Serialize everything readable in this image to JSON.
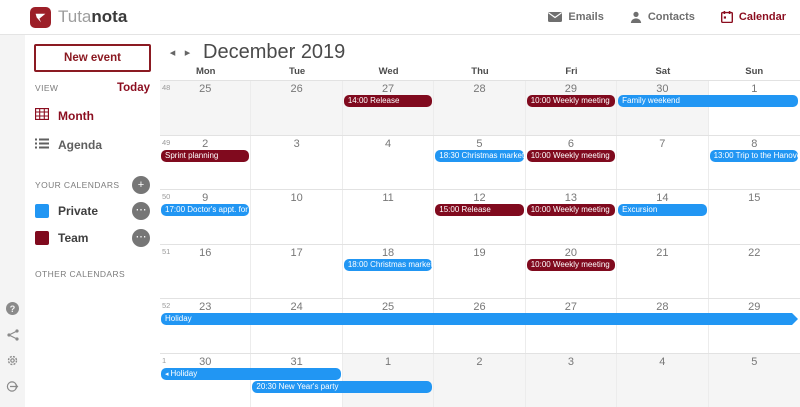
{
  "topbar": {
    "brand": {
      "light": "Tuta",
      "dark": "nota"
    },
    "nav": [
      {
        "label": "Emails",
        "icon": "email-icon"
      },
      {
        "label": "Contacts",
        "icon": "contacts-icon"
      },
      {
        "label": "Calendar",
        "icon": "calendar-icon",
        "active": true
      }
    ]
  },
  "sidebar": {
    "new_event_label": "New event",
    "view_label": "VIEW",
    "today_label": "Today",
    "views": [
      {
        "label": "Month"
      },
      {
        "label": "Agenda"
      }
    ],
    "your_calendars_label": "YOUR CALENDARS",
    "calendars": [
      {
        "label": "Private",
        "color": "#2196F3"
      },
      {
        "label": "Team",
        "color": "#800a1e"
      }
    ],
    "other_calendars_label": "OTHER CALENDARS"
  },
  "calendar": {
    "title": "December 2019",
    "day_names": [
      "Mon",
      "Tue",
      "Wed",
      "Thu",
      "Fri",
      "Sat",
      "Sun"
    ],
    "weeks": [
      {
        "week_number": "48",
        "days": [
          {
            "n": "25",
            "other": true
          },
          {
            "n": "26",
            "other": true
          },
          {
            "n": "27",
            "other": true
          },
          {
            "n": "28",
            "other": true
          },
          {
            "n": "29",
            "other": true
          },
          {
            "n": "30",
            "other": true
          },
          {
            "n": "1",
            "other": false
          }
        ],
        "events": [
          {
            "label": "14:00 Release",
            "cal": "red",
            "col": 2,
            "span": 1,
            "line": 0
          },
          {
            "label": "10:00 Weekly meeting",
            "cal": "red",
            "col": 4,
            "span": 1,
            "line": 0
          },
          {
            "label": "Family weekend",
            "cal": "blue",
            "col": 5,
            "span": 2,
            "line": 0
          }
        ]
      },
      {
        "week_number": "49",
        "days": [
          {
            "n": "2"
          },
          {
            "n": "3"
          },
          {
            "n": "4"
          },
          {
            "n": "5"
          },
          {
            "n": "6"
          },
          {
            "n": "7"
          },
          {
            "n": "8"
          }
        ],
        "events": [
          {
            "label": "Sprint planning",
            "cal": "red",
            "col": 0,
            "span": 1,
            "line": 0
          },
          {
            "label": "18:30 Christmas market",
            "cal": "blue",
            "col": 3,
            "span": 1,
            "line": 0
          },
          {
            "label": "10:00 Weekly meeting",
            "cal": "red",
            "col": 4,
            "span": 1,
            "line": 0
          },
          {
            "label": "13:00 Trip to the Hanover",
            "cal": "blue",
            "col": 6,
            "span": 1,
            "line": 0
          }
        ]
      },
      {
        "week_number": "50",
        "days": [
          {
            "n": "9"
          },
          {
            "n": "10"
          },
          {
            "n": "11"
          },
          {
            "n": "12"
          },
          {
            "n": "13"
          },
          {
            "n": "14"
          },
          {
            "n": "15"
          }
        ],
        "events": [
          {
            "label": "17:00 Doctor's appt. for Mia",
            "cal": "blue",
            "col": 0,
            "span": 1,
            "line": 0
          },
          {
            "label": "15:00 Release",
            "cal": "red",
            "col": 3,
            "span": 1,
            "line": 0
          },
          {
            "label": "10:00 Weekly meeting",
            "cal": "red",
            "col": 4,
            "span": 1,
            "line": 0
          },
          {
            "label": "Excursion",
            "cal": "blue",
            "col": 5,
            "span": 1,
            "line": 0
          }
        ]
      },
      {
        "week_number": "51",
        "days": [
          {
            "n": "16"
          },
          {
            "n": "17"
          },
          {
            "n": "18"
          },
          {
            "n": "19"
          },
          {
            "n": "20"
          },
          {
            "n": "21"
          },
          {
            "n": "22"
          }
        ],
        "events": [
          {
            "label": "18:00 Christmas market",
            "cal": "blue",
            "col": 2,
            "span": 1,
            "line": 0
          },
          {
            "label": "10:00 Weekly meeting",
            "cal": "red",
            "col": 4,
            "span": 1,
            "line": 0
          }
        ]
      },
      {
        "week_number": "52",
        "days": [
          {
            "n": "23"
          },
          {
            "n": "24"
          },
          {
            "n": "25"
          },
          {
            "n": "26"
          },
          {
            "n": "27"
          },
          {
            "n": "28"
          },
          {
            "n": "29"
          }
        ],
        "events": [
          {
            "label": "Holiday",
            "cal": "blue",
            "col": 0,
            "span": 7,
            "line": 0,
            "arrow_right": true
          }
        ]
      },
      {
        "week_number": "1",
        "days": [
          {
            "n": "30"
          },
          {
            "n": "31"
          },
          {
            "n": "1",
            "other": true
          },
          {
            "n": "2",
            "other": true
          },
          {
            "n": "3",
            "other": true
          },
          {
            "n": "4",
            "other": true
          },
          {
            "n": "5",
            "other": true
          }
        ],
        "events": [
          {
            "label": "Holiday",
            "cal": "blue",
            "col": 0,
            "span": 2,
            "line": 0,
            "arrow_left": true
          },
          {
            "label": "20:30 New Year's party",
            "cal": "blue",
            "col": 1,
            "span": 2,
            "line": 1
          }
        ]
      }
    ]
  },
  "colors": {
    "red": "#800a1e",
    "blue": "#2196F3",
    "brand": "#9c1f28"
  }
}
